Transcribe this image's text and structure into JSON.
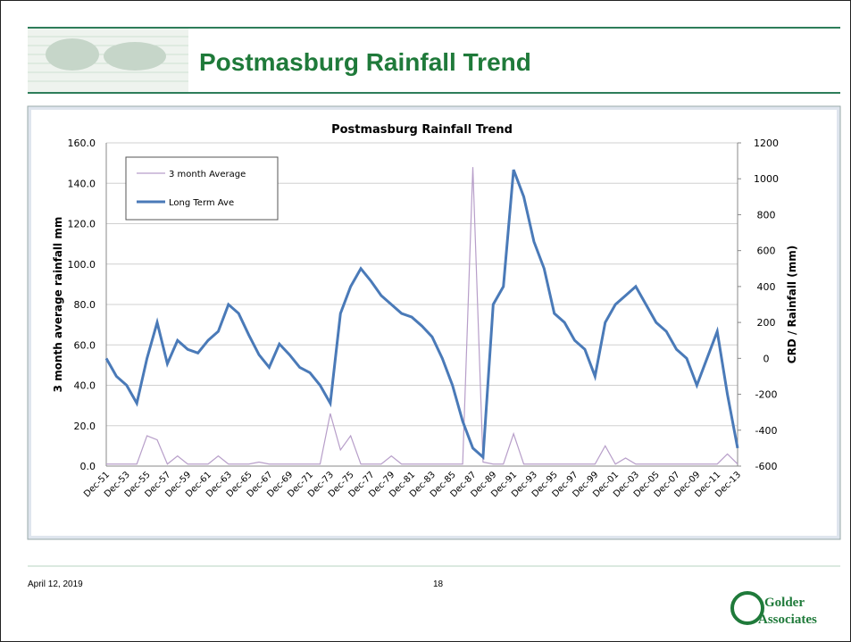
{
  "header": {
    "title": "Postmasburg Rainfall Trend"
  },
  "footer": {
    "date": "April 12, 2019",
    "page": "18"
  },
  "logo": {
    "name": "Golder",
    "sub": "Associates"
  },
  "chart_data": {
    "type": "line",
    "title": "Postmasburg Rainfall Trend",
    "y_label": "3 month average rainfall mm",
    "y2_label": "CRD / Rainfall (mm)",
    "categories": [
      "Dec-51",
      null,
      "Dec-53",
      null,
      "Dec-55",
      null,
      "Dec-57",
      null,
      "Dec-59",
      null,
      "Dec-61",
      null,
      "Dec-63",
      null,
      "Dec-65",
      null,
      "Dec-67",
      null,
      "Dec-69",
      null,
      "Dec-71",
      null,
      "Dec-73",
      null,
      "Dec-75",
      null,
      "Dec-77",
      null,
      "Dec-79",
      null,
      "Dec-81",
      null,
      "Dec-83",
      null,
      "Dec-85",
      null,
      "Dec-87",
      null,
      "Dec-89",
      null,
      "Dec-91",
      null,
      "Dec-93",
      null,
      "Dec-95",
      null,
      "Dec-97",
      null,
      "Dec-99",
      null,
      "Dec-01",
      null,
      "Dec-03",
      null,
      "Dec-05",
      null,
      "Dec-07",
      null,
      "Dec-09",
      null,
      "Dec-11",
      null,
      "Dec-13"
    ],
    "series": [
      {
        "name": "3 month Average",
        "color": "#b79ec9",
        "width": 1.2,
        "values": [
          1,
          1,
          1,
          1,
          15,
          13,
          1,
          5,
          1,
          1,
          1,
          5,
          1,
          1,
          1,
          2,
          1,
          1,
          1,
          1,
          1,
          1,
          26,
          8,
          15,
          1,
          1,
          1,
          5,
          1,
          1,
          1,
          1,
          1,
          1,
          1,
          148,
          2,
          1,
          1,
          16,
          1,
          1,
          1,
          1,
          1,
          1,
          1,
          1,
          10,
          1,
          4,
          1,
          1,
          1,
          1,
          1,
          1,
          1,
          1,
          1,
          6,
          1
        ]
      },
      {
        "name": "Long Term Ave",
        "color": "#4a7ab8",
        "width": 3,
        "axis": "y2",
        "values": [
          0,
          -100,
          -150,
          -250,
          0,
          200,
          -30,
          100,
          50,
          30,
          100,
          150,
          300,
          250,
          130,
          20,
          -50,
          80,
          20,
          -50,
          -80,
          -150,
          -250,
          250,
          400,
          500,
          430,
          350,
          300,
          250,
          230,
          180,
          120,
          0,
          -150,
          -350,
          -500,
          -550,
          300,
          400,
          1050,
          900,
          650,
          500,
          250,
          200,
          100,
          50,
          -100,
          200,
          300,
          350,
          400,
          300,
          200,
          150,
          50,
          0,
          -150,
          0,
          150,
          -200,
          -500
        ]
      }
    ],
    "ylim": [
      0,
      160
    ],
    "yticks": [
      {
        "value": 0,
        "label": "0.0"
      },
      {
        "value": 20,
        "label": "20.0"
      },
      {
        "value": 40,
        "label": "40.0"
      },
      {
        "value": 60,
        "label": "60.0"
      },
      {
        "value": 80,
        "label": "80.0"
      },
      {
        "value": 100,
        "label": "100.0"
      },
      {
        "value": 120,
        "label": "120.0"
      },
      {
        "value": 140,
        "label": "140.0"
      },
      {
        "value": 160,
        "label": "160.0"
      }
    ],
    "y2lim": [
      -600,
      1200
    ],
    "y2ticks": [
      -600,
      -400,
      -200,
      0,
      200,
      400,
      600,
      800,
      1000,
      1200
    ],
    "grid": true,
    "legend": "upper left"
  }
}
